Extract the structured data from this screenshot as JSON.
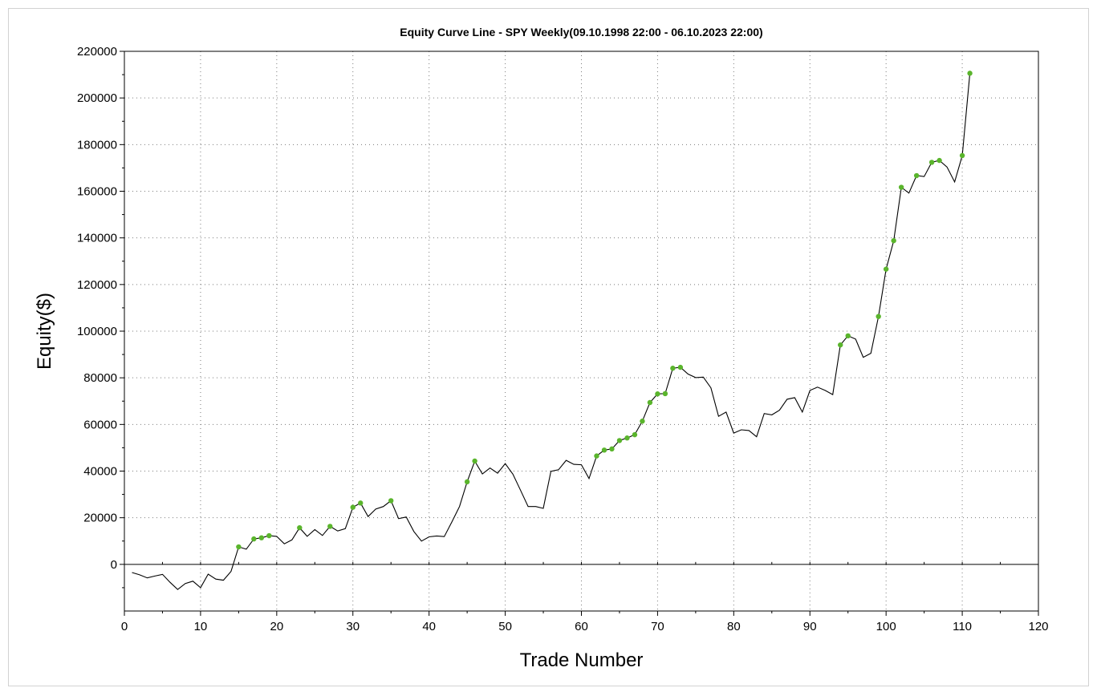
{
  "chart_data": {
    "type": "line",
    "title": "Equity Curve Line - SPY Weekly(09.10.1998 22:00 - 06.10.2023 22:00)",
    "xlabel": "Trade Number",
    "ylabel": "Equity($)",
    "xlim": [
      0,
      120
    ],
    "ylim": [
      -20000,
      220000
    ],
    "xticks": [
      0,
      10,
      20,
      30,
      40,
      50,
      60,
      70,
      80,
      90,
      100,
      110,
      120
    ],
    "yticks": [
      0,
      20000,
      40000,
      60000,
      80000,
      100000,
      120000,
      140000,
      160000,
      180000,
      200000,
      220000
    ],
    "grid": true,
    "colors": {
      "line": "#000000",
      "marker": "#5ab52c",
      "grid": "#808080",
      "frame": "#d2d2d2"
    },
    "series": [
      {
        "x": [
          1,
          2,
          3,
          4,
          5,
          6,
          7,
          8,
          9,
          10,
          11,
          12,
          13,
          14,
          15,
          16,
          17,
          18,
          19,
          20,
          21,
          22,
          23,
          24,
          25,
          26,
          27,
          28,
          29,
          30,
          31,
          32,
          33,
          34,
          35,
          36,
          37,
          38,
          39,
          40,
          41,
          42,
          43,
          44,
          45,
          46,
          47,
          48,
          49,
          50,
          51,
          52,
          53,
          54,
          55,
          56,
          57,
          58,
          59,
          60,
          61,
          62,
          63,
          64,
          65,
          66,
          67,
          68,
          69,
          70,
          71,
          72,
          73,
          74,
          75,
          76,
          77,
          78,
          79,
          80,
          81,
          82,
          83,
          84,
          85,
          86,
          87,
          88,
          89,
          90,
          91,
          92,
          93,
          94,
          95,
          96,
          97,
          98,
          99,
          100,
          101,
          102,
          103,
          104,
          105,
          106,
          107,
          108,
          109,
          110,
          111
        ],
        "values": [
          -3500,
          -4500,
          -5800,
          -5000,
          -4300,
          -7700,
          -10800,
          -8200,
          -7200,
          -10000,
          -4200,
          -6300,
          -6800,
          -3000,
          7500,
          6500,
          10900,
          11400,
          12300,
          12000,
          8800,
          10500,
          15700,
          12000,
          14900,
          12400,
          16300,
          14300,
          15300,
          24500,
          26300,
          20500,
          23700,
          24800,
          27300,
          19600,
          20300,
          14100,
          10000,
          11800,
          12200,
          11900,
          18200,
          24800,
          35400,
          44300,
          38800,
          41300,
          39100,
          43200,
          38700,
          31800,
          24800,
          24800,
          24000,
          39900,
          40600,
          44600,
          42900,
          42700,
          36800,
          46500,
          49000,
          49500,
          53100,
          54200,
          55600,
          61400,
          69400,
          73100,
          73200,
          84100,
          84500,
          81600,
          80100,
          80300,
          75700,
          63500,
          65300,
          56300,
          57700,
          57400,
          54700,
          64700,
          64100,
          66100,
          70800,
          71500,
          65300,
          74600,
          76000,
          74600,
          72800,
          94100,
          98000,
          96600,
          88800,
          90500,
          106300,
          126600,
          138800,
          161700,
          159200,
          166700,
          166300,
          172400,
          173200,
          170400,
          164000,
          175300,
          210600
        ],
        "markers": [
          15,
          17,
          18,
          19,
          23,
          27,
          30,
          31,
          35,
          45,
          46,
          62,
          63,
          64,
          65,
          66,
          67,
          68,
          69,
          70,
          71,
          72,
          73,
          94,
          95,
          99,
          100,
          101,
          102,
          104,
          106,
          107,
          110,
          111
        ]
      }
    ]
  }
}
